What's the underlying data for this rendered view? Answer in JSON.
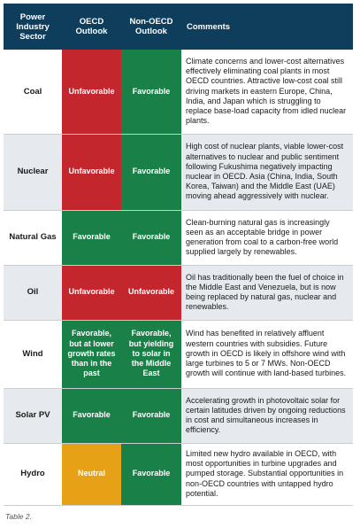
{
  "header": {
    "sector": "Power Industry Sector",
    "oecd": "OECD Outlook",
    "non_oecd": "Non-OECD Outlook",
    "comments": "Comments"
  },
  "colors": {
    "header_bg": "#0f3d5c",
    "favorable": "#198048",
    "unfavorable": "#c4262e",
    "neutral": "#e6a117",
    "alt_row": "#e6eaee"
  },
  "rows": [
    {
      "sector": "Coal",
      "oecd": "Unfavorable",
      "non_oecd": "Favorable",
      "comment": "Climate concerns and lower-cost alternatives effectively eliminating coal plants in most OECD countries. Attractive low-cost coal still driving markets in eastern Europe, China, India, and Japan which is struggling to replace base-load capacity from idled nuclear plants."
    },
    {
      "sector": "Nuclear",
      "oecd": "Unfavorable",
      "non_oecd": "Favorable",
      "comment": "High cost of nuclear plants, viable lower-cost alternatives to nuclear and public sentiment following Fukushima negatively impacting nuclear in OECD. Asia (China, India, South Korea, Taiwan) and the Middle East (UAE) moving ahead aggressively with nuclear."
    },
    {
      "sector": "Natural Gas",
      "oecd": "Favorable",
      "non_oecd": "Favorable",
      "comment": "Clean-burning natural gas is increasingly seen as an acceptable bridge in power generation from coal to a carbon-free world supplied largely by renewables."
    },
    {
      "sector": "Oil",
      "oecd": "Unfavorable",
      "non_oecd": "Unfavorable",
      "comment": "Oil has traditionally been the fuel of choice in the Middle East and Venezuela, but is now being replaced by natural gas, nuclear and renewables."
    },
    {
      "sector": "Wind",
      "oecd": "Favorable, but at lower growth rates than in the past",
      "non_oecd": "Favorable, but yielding to solar in the Middle East",
      "comment": "Wind has benefited in relatively affluent western countries with subsidies. Future growth in OECD is likely in offshore wind with large turbines to 5 or 7 MWs. Non-OECD growth will continue with land-based turbines."
    },
    {
      "sector": "Solar PV",
      "oecd": "Favorable",
      "non_oecd": "Favorable",
      "comment": "Accelerating growth in photovoltaic solar for certain latitudes driven by ongoing reductions in cost and simultaneous increases in efficiency."
    },
    {
      "sector": "Hydro",
      "oecd": "Neutral",
      "non_oecd": "Favorable",
      "comment": "Limited new hydro available in OECD, with most opportunities in turbine upgrades and pumped storage. Substantial opportunities in non-OECD countries with untapped hydro potential."
    }
  ],
  "caption": "Table 2."
}
